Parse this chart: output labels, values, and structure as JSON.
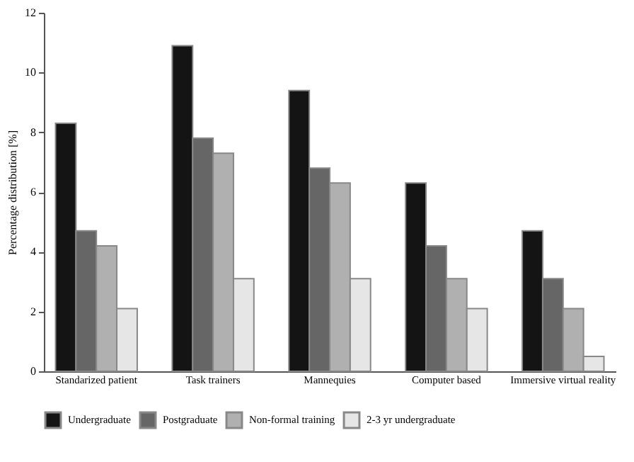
{
  "chart_data": {
    "type": "bar",
    "ylabel": "Percentage distribution [%]",
    "categories": [
      "Standarized patient",
      "Task trainers",
      "Mannequies",
      "Computer based",
      "Immersive virtual reality"
    ],
    "series": [
      {
        "name": "Undergraduate",
        "color": "#141414",
        "values": [
          8.3,
          10.9,
          9.4,
          6.3,
          4.7
        ]
      },
      {
        "name": "Postgraduate",
        "color": "#666666",
        "values": [
          4.7,
          7.8,
          6.8,
          4.2,
          3.1
        ]
      },
      {
        "name": "Non-formal training",
        "color": "#b0b0b0",
        "values": [
          4.2,
          7.3,
          6.3,
          3.1,
          2.1
        ]
      },
      {
        "name": "2-3 yr undergraduate",
        "color": "#e6e6e6",
        "values": [
          2.1,
          3.1,
          3.1,
          2.1,
          0.5
        ]
      }
    ],
    "ylim": [
      0,
      12
    ],
    "yticks": [
      0,
      2,
      4,
      6,
      8,
      10,
      12
    ],
    "grid": false,
    "legend": "bottom"
  }
}
